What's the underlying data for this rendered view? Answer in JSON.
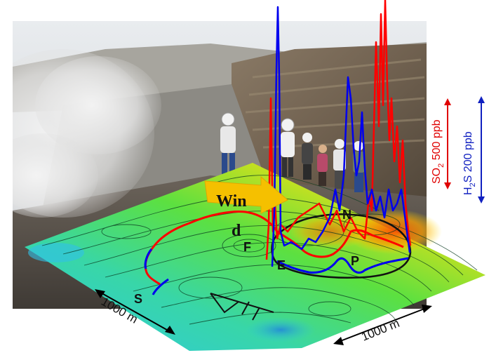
{
  "labels": {
    "wind_line1": "Win",
    "wind_line2": "d",
    "point_F": "F",
    "point_E": "E",
    "point_N": "N",
    "point_P": "P",
    "point_S": "S"
  },
  "scale": {
    "left": "1000 m",
    "right": "1000 m"
  },
  "legend": {
    "so2": {
      "prefix": "SO",
      "sub": "2",
      "suffix": " 500 ppb",
      "color": "#e00000"
    },
    "h2s": {
      "prefix": "H",
      "sub": "2",
      "suffix": "S 200 ppb",
      "color": "#1020c0"
    }
  },
  "colors": {
    "so2_trace": "#ff0000",
    "h2s_trace": "#0000ee",
    "wind_arrow": "#f5c000"
  }
}
